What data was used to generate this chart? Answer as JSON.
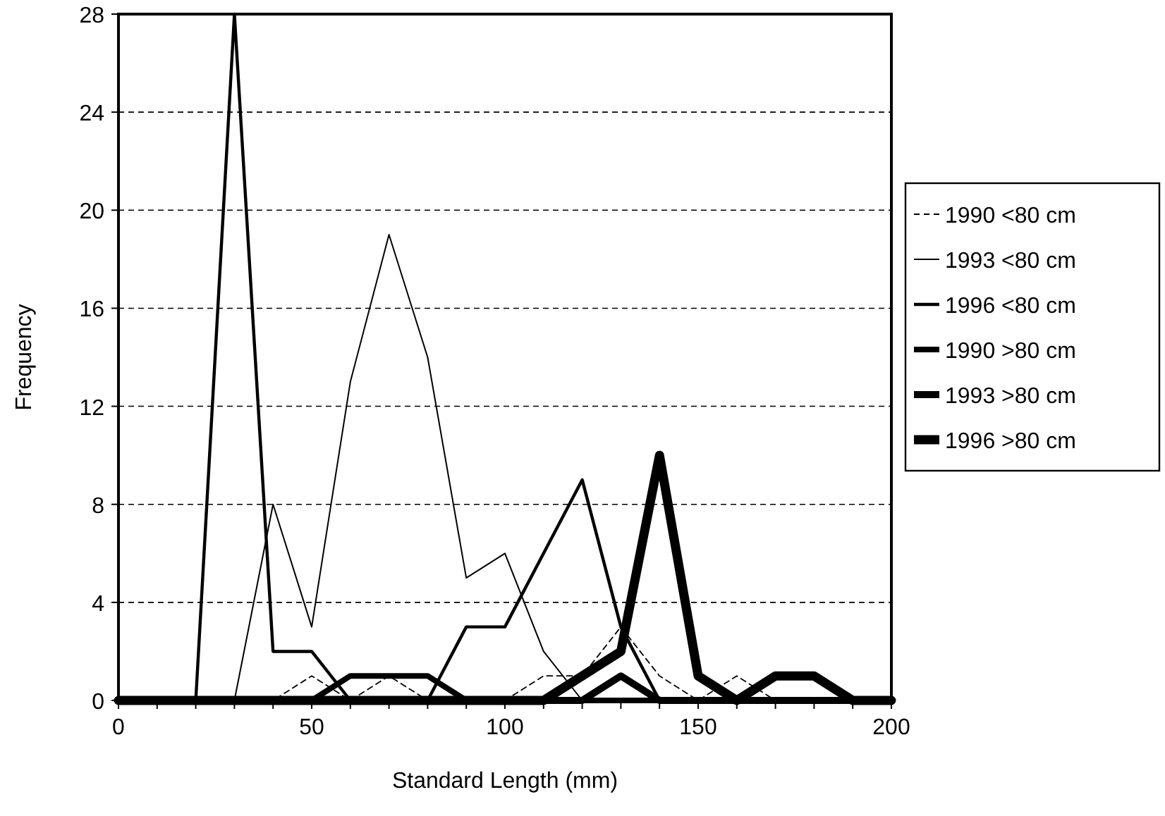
{
  "chart_data": {
    "type": "line",
    "xlabel": "Standard Length (mm)",
    "ylabel": "Frequency",
    "x": [
      0,
      10,
      20,
      30,
      40,
      50,
      60,
      70,
      80,
      90,
      100,
      110,
      120,
      130,
      140,
      150,
      160,
      170,
      180,
      190,
      200
    ],
    "xlim": [
      0,
      200
    ],
    "xticks": [
      0,
      {
        "value": 10,
        "label": null
      },
      {
        "value": 20,
        "label": null
      },
      {
        "value": 30,
        "label": null
      },
      {
        "value": 40,
        "label": null
      },
      50,
      {
        "value": 60,
        "label": null
      },
      {
        "value": 70,
        "label": null
      },
      {
        "value": 80,
        "label": null
      },
      {
        "value": 90,
        "label": null
      },
      100,
      {
        "value": 110,
        "label": null
      },
      {
        "value": 120,
        "label": null
      },
      {
        "value": 130,
        "label": null
      },
      {
        "value": 140,
        "label": null
      },
      150,
      {
        "value": 160,
        "label": null
      },
      {
        "value": 170,
        "label": null
      },
      {
        "value": 180,
        "label": null
      },
      {
        "value": 190,
        "label": null
      },
      200
    ],
    "ylim": [
      0,
      28
    ],
    "yticks": [
      0,
      4,
      8,
      12,
      16,
      20,
      24,
      28
    ],
    "grid": "y",
    "legend": "right",
    "marker": "none",
    "series": [
      {
        "name": "1990 <80 cm",
        "color": "#000000",
        "line_style": "dashed",
        "values": [
          0,
          0,
          0,
          0,
          0,
          1,
          0,
          1,
          0,
          0,
          0,
          1,
          1,
          3,
          1,
          0,
          1,
          0,
          0,
          0,
          0
        ]
      },
      {
        "name": "1993 <80 cm",
        "color": "#000000",
        "line_style": "solid",
        "values": [
          0,
          0,
          0,
          0,
          8,
          3,
          13,
          19,
          14,
          5,
          6,
          2,
          0,
          0,
          0,
          0,
          0,
          0,
          0,
          0,
          0
        ]
      },
      {
        "name": "1996 <80 cm",
        "color": "#000000",
        "line_style": "solid",
        "values": [
          0,
          0,
          0,
          28,
          2,
          2,
          0,
          0,
          0,
          3,
          3,
          6,
          9,
          3,
          0,
          0,
          0,
          0,
          0,
          0,
          0
        ]
      },
      {
        "name": "1990 >80 cm",
        "color": "#000000",
        "line_style": "solid",
        "values": [
          0,
          0,
          0,
          0,
          0,
          0,
          1,
          1,
          1,
          0,
          0,
          0,
          0,
          0,
          0,
          0,
          0,
          0,
          0,
          0,
          0
        ]
      },
      {
        "name": "1993 >80 cm",
        "color": "#000000",
        "line_style": "solid",
        "values": [
          0,
          0,
          0,
          0,
          0,
          0,
          0,
          0,
          0,
          0,
          0,
          0,
          0,
          1,
          0,
          0,
          0,
          0,
          0,
          0,
          0
        ]
      },
      {
        "name": "1996 >80 cm",
        "color": "#000000",
        "line_style": "solid",
        "values": [
          0,
          0,
          0,
          0,
          0,
          0,
          0,
          0,
          0,
          0,
          0,
          0,
          1,
          2,
          10,
          1,
          0,
          1,
          1,
          0,
          0
        ]
      }
    ]
  }
}
